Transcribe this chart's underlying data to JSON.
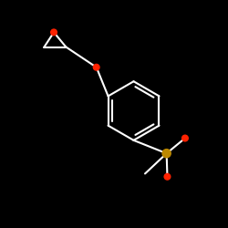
{
  "bg_color": "#000000",
  "bond_color": "#ffffff",
  "oxygen_color": "#ff2200",
  "sulfur_color": "#bb8800",
  "lw": 1.5,
  "figsize": [
    2.5,
    2.5
  ],
  "dpi": 100,
  "xlim": [
    -0.15,
    1.05
  ],
  "ylim": [
    -0.15,
    1.05
  ]
}
